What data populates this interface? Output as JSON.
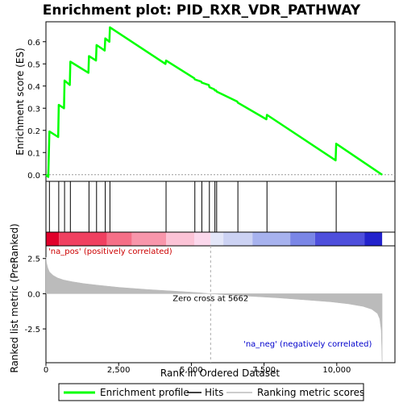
{
  "title": "Enrichment plot: PID_RXR_VDR_PATHWAY",
  "chart_data": {
    "type": "line",
    "title": "Enrichment plot: PID_RXR_VDR_PATHWAY",
    "xlabel": "Rank in Ordered Dataset",
    "es_panel": {
      "ylabel": "Enrichment score (ES)",
      "yticks": [
        "0.0",
        "0.1",
        "0.2",
        "0.3",
        "0.4",
        "0.5",
        "0.6"
      ],
      "ylim": [
        -0.03,
        0.69
      ],
      "series": [
        {
          "name": "Enrichment profile",
          "color": "#00ff00",
          "x": [
            0,
            80,
            120,
            420,
            440,
            620,
            640,
            820,
            840,
            1460,
            1480,
            1720,
            1740,
            2020,
            2040,
            2180,
            2200,
            4110,
            4130,
            5100,
            5120,
            5340,
            5360,
            5600,
            5620,
            5790,
            5810,
            5850,
            5870,
            6580,
            6600,
            7580,
            7600,
            9960,
            9980,
            11560
          ],
          "y": [
            0.0,
            -0.01,
            0.195,
            0.17,
            0.315,
            0.3,
            0.425,
            0.405,
            0.51,
            0.46,
            0.535,
            0.515,
            0.585,
            0.56,
            0.615,
            0.6,
            0.665,
            0.5,
            0.515,
            0.435,
            0.43,
            0.42,
            0.415,
            0.405,
            0.395,
            0.385,
            0.38,
            0.38,
            0.375,
            0.33,
            0.325,
            0.25,
            0.27,
            0.065,
            0.14,
            0.0
          ]
        }
      ]
    },
    "hits": [
      120,
      440,
      640,
      840,
      1480,
      1740,
      2040,
      2200,
      4130,
      5120,
      5360,
      5620,
      5810,
      5870,
      6600,
      7600,
      9980
    ],
    "rank_metric_panel": {
      "ylabel": "Ranked list metric (PreRanked)",
      "yticks": [
        "2.5",
        "0.0",
        "-2.5"
      ],
      "ylim": [
        -4.9,
        3.4
      ],
      "zero_cross_label": "Zero cross at 5662",
      "zero_cross": 5662,
      "pos_label": "'na_pos' (positively correlated)",
      "neg_label": "'na_neg' (negatively correlated)",
      "series": [
        {
          "name": "Ranking metric scores",
          "color": "#bbbbbb",
          "x": [
            0,
            20,
            60,
            120,
            250,
            400,
            600,
            900,
            1300,
            1800,
            2500,
            3500,
            4500,
            5300,
            5662,
            6200,
            7000,
            8000,
            9000,
            9800,
            10400,
            10900,
            11200,
            11400,
            11480,
            11530,
            11560
          ],
          "y": [
            2.6,
            2.2,
            1.85,
            1.55,
            1.3,
            1.12,
            0.98,
            0.85,
            0.72,
            0.6,
            0.45,
            0.3,
            0.17,
            0.07,
            0.0,
            -0.08,
            -0.18,
            -0.3,
            -0.45,
            -0.58,
            -0.72,
            -0.9,
            -1.1,
            -1.4,
            -1.8,
            -2.6,
            -4.8
          ]
        }
      ]
    },
    "xticks": [
      "0",
      "2,500",
      "5,000",
      "7,500",
      "10,000"
    ],
    "xtick_values": [
      0,
      2500,
      5000,
      7500,
      10000
    ],
    "xlim": [
      0,
      12000
    ],
    "color_bar": {
      "segments": [
        {
          "from": 0,
          "to": 450,
          "color": "#e0002a"
        },
        {
          "from": 450,
          "to": 2100,
          "color": "#f04060"
        },
        {
          "from": 2100,
          "to": 2950,
          "color": "#f56f87"
        },
        {
          "from": 2950,
          "to": 4130,
          "color": "#f896ab"
        },
        {
          "from": 4130,
          "to": 5100,
          "color": "#fbc3d6"
        },
        {
          "from": 5100,
          "to": 5662,
          "color": "#fbd8ec"
        },
        {
          "from": 5662,
          "to": 6100,
          "color": "#e3e6f8"
        },
        {
          "from": 6100,
          "to": 7100,
          "color": "#ccd2f3"
        },
        {
          "from": 7100,
          "to": 8400,
          "color": "#a7b2ee"
        },
        {
          "from": 8400,
          "to": 9250,
          "color": "#7a86e6"
        },
        {
          "from": 9250,
          "to": 10950,
          "color": "#4e4fdc"
        },
        {
          "from": 10950,
          "to": 11560,
          "color": "#2222cc"
        }
      ]
    },
    "legend": {
      "placement": "bottom",
      "items": [
        {
          "label": "Enrichment profile",
          "color": "#00ff00"
        },
        {
          "label": "Hits",
          "color": "#000000"
        },
        {
          "label": "Ranking metric scores",
          "color": "#bbbbbb"
        }
      ]
    }
  }
}
